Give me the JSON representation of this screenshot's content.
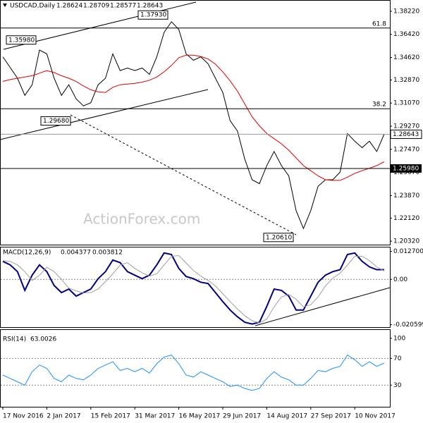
{
  "chart_data": [
    {
      "type": "line",
      "title": "USDCAD,Daily",
      "quote": [
        1.28624,
        1.28709,
        1.28577,
        1.28643
      ],
      "watermark": "ActionForex.com",
      "categories": [
        "17 Nov 2016",
        null,
        null,
        null,
        null,
        null,
        "2 Jan 2017",
        null,
        null,
        null,
        null,
        null,
        "15 Feb 2017",
        null,
        null,
        null,
        null,
        null,
        "31 Mar 2017",
        null,
        null,
        null,
        null,
        null,
        "16 May 2017",
        null,
        null,
        null,
        null,
        null,
        "29 Jun 2017",
        null,
        null,
        null,
        null,
        null,
        "14 Aug 2017",
        null,
        null,
        null,
        null,
        null,
        "27 Sep 2017",
        null,
        null,
        null,
        null,
        null,
        "10 Nov 2017",
        null,
        null,
        null,
        null
      ],
      "series": [
        {
          "color": "#000000",
          "values": [
            1.3467,
            1.3385,
            1.33,
            1.3167,
            1.3249,
            1.352,
            1.349,
            1.33,
            1.3167,
            1.325,
            1.314,
            1.3085,
            1.311,
            1.325,
            1.33,
            1.349,
            1.336,
            1.338,
            1.336,
            1.338,
            1.333,
            1.3467,
            1.3658,
            1.374,
            1.368,
            1.349,
            1.344,
            1.3467,
            1.3413,
            1.33,
            1.319,
            1.297,
            1.289,
            1.267,
            1.251,
            1.248,
            1.262,
            1.273,
            1.262,
            1.254,
            1.227,
            1.213,
            1.227,
            1.246,
            1.251,
            1.251,
            1.257,
            1.287,
            1.281,
            1.276,
            1.281,
            1.273,
            1.2864
          ]
        },
        {
          "color": "#e00000",
          "values": [
            1.3276,
            1.329,
            1.33,
            1.331,
            1.332,
            1.334,
            1.336,
            1.3345,
            1.332,
            1.33,
            1.3275,
            1.324,
            1.321,
            1.3195,
            1.319,
            1.323,
            1.325,
            1.3255,
            1.326,
            1.327,
            1.3285,
            1.331,
            1.335,
            1.34,
            1.346,
            1.348,
            1.348,
            1.347,
            1.345,
            1.341,
            1.335,
            1.328,
            1.32,
            1.31,
            1.3,
            1.293,
            1.287,
            1.283,
            1.279,
            1.274,
            1.268,
            1.262,
            1.258,
            1.254,
            1.251,
            1.2505,
            1.2505,
            1.253,
            1.256,
            1.258,
            1.26,
            1.262,
            1.265
          ]
        }
      ],
      "ylim": [
        1.2005,
        1.3904
      ],
      "yticks": [
        {
          "value": 1.3822,
          "label": "1.38220"
        },
        {
          "value": 1.3642,
          "label": "1.36420"
        },
        {
          "value": 1.3462,
          "label": "1.34620"
        },
        {
          "value": 1.3287,
          "label": "1.32870"
        },
        {
          "value": 1.3107,
          "label": "1.31070"
        },
        {
          "value": 1.2927,
          "label": "1.29270"
        },
        {
          "value": 1.2747,
          "label": "1.27470"
        },
        {
          "value": 1.2567,
          "label": "1.25670"
        },
        {
          "value": 1.2387,
          "label": "1.23870"
        },
        {
          "value": 1.2212,
          "label": "1.22120"
        },
        {
          "value": 1.2032,
          "label": "1.20320"
        }
      ],
      "annotations": [
        {
          "value": 1.3793,
          "label": "1.37930"
        },
        {
          "value": 1.3598,
          "label": "1.35980"
        },
        {
          "value": 1.2968,
          "label": "1.29680"
        },
        {
          "value": 1.2061,
          "label": "1.20610"
        }
      ],
      "levels": [
        {
          "value": 1.3691,
          "label": "61.8"
        },
        {
          "value": 1.3063,
          "label": "38.2"
        },
        {
          "value": 1.2598,
          "label": "1.25980"
        }
      ]
    },
    {
      "type": "line",
      "title": "MACD(12,26,9)",
      "readout": [
        0.004377,
        0.003812
      ],
      "series": [
        {
          "color": "#000080",
          "values": [
            0.0082,
            0.0066,
            0.0035,
            -0.005,
            0.0019,
            0.0066,
            0.0035,
            -0.0028,
            -0.006,
            -0.0044,
            -0.0076,
            -0.006,
            -0.0044,
            0.0003,
            0.0035,
            0.0088,
            0.0076,
            0.0035,
            0.0019,
            0.0003,
            0.0019,
            0.0066,
            0.012,
            0.0113,
            0.005,
            0.0013,
            0.0003,
            -0.0013,
            -0.0019,
            -0.006,
            -0.0101,
            -0.0139,
            -0.017,
            -0.0195,
            -0.0203,
            -0.0195,
            -0.0123,
            -0.0044,
            -0.005,
            -0.0076,
            -0.0139,
            -0.0139,
            -0.0076,
            -0.0013,
            0.0019,
            0.0035,
            0.0044,
            0.0113,
            0.012,
            0.0082,
            0.0057,
            0.0044,
            0.0044
          ]
        },
        {
          "color": "#a0a0a0",
          "values": [
            0.0085,
            0.0082,
            0.0066,
            0.0035,
            -0.0005,
            0.0019,
            0.0055,
            0.0035,
            0.0,
            -0.004,
            -0.0052,
            -0.0062,
            -0.006,
            -0.0044,
            -0.001,
            0.0025,
            0.0065,
            0.0076,
            0.005,
            0.003,
            0.0015,
            0.0025,
            0.0066,
            0.0105,
            0.0108,
            0.0075,
            0.004,
            0.0015,
            -0.0005,
            -0.003,
            -0.0065,
            -0.0101,
            -0.0135,
            -0.0165,
            -0.0188,
            -0.0198,
            -0.018,
            -0.0125,
            -0.008,
            -0.0068,
            -0.009,
            -0.0125,
            -0.0115,
            -0.008,
            -0.003,
            0.0005,
            0.0028,
            0.0065,
            0.0105,
            0.0105,
            0.0085,
            0.0057,
            0.0038
          ]
        }
      ],
      "ylim": [
        -0.0217,
        0.0145
      ],
      "yticks": [
        {
          "value": 0.0127,
          "label": "0.012700"
        },
        {
          "value": 0,
          "label": "0.00"
        },
        {
          "value": -0.020599,
          "label": "-0.020599"
        }
      ]
    },
    {
      "type": "line",
      "title": "RSI(14)",
      "readout": [
        63.0026
      ],
      "series": [
        {
          "color": "#1e90ff",
          "values": [
            45,
            40,
            35,
            30,
            50,
            60,
            55,
            40,
            35,
            45,
            40,
            38,
            45,
            55,
            60,
            65,
            52,
            55,
            50,
            55,
            48,
            62,
            72,
            75,
            62,
            45,
            42,
            50,
            45,
            40,
            35,
            28,
            30,
            25,
            22,
            25,
            40,
            50,
            42,
            38,
            30,
            30,
            40,
            52,
            50,
            55,
            58,
            75,
            68,
            58,
            65,
            58,
            63
          ]
        }
      ],
      "ylim": [
        -2.4,
        112.5
      ],
      "yticks": [
        100,
        70,
        30
      ]
    }
  ]
}
